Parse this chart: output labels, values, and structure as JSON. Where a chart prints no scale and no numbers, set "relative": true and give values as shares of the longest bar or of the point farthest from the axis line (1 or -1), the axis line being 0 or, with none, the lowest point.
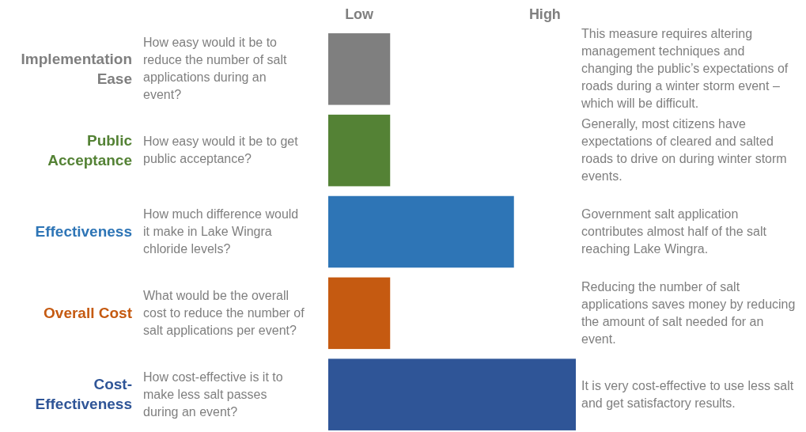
{
  "chart_data": {
    "type": "bar",
    "orientation": "horizontal",
    "relative": true,
    "categories": [
      "Implementation Ease",
      "Public Acceptance",
      "Effectiveness",
      "Overall Cost",
      "Cost-Effectiveness"
    ],
    "values": [
      0.25,
      0.25,
      0.75,
      0.25,
      1
    ],
    "colors": [
      "#7f7f7f",
      "#548235",
      "#2e75b6",
      "#c55a11",
      "#2f5597"
    ],
    "annotations": [
      "Low",
      "High",
      "How easy would it be to reduce the number of salt applications during an event?",
      "How easy would it be to get public acceptance?",
      "How much difference would it make in Lake Wingra chloride levels?",
      "What would be the overall cost to reduce the number of salt applications per event?",
      "How cost-effective is it to make less salt passes during an event?",
      "This measure requires altering management techniques and changing the public’s expectations of roads during a winter storm event – which will be difficult.",
      "Generally, most citizens have expectations of cleared and salted roads to drive on during winter storm events.",
      "Government salt application contributes almost half of the salt reaching Lake Wingra.",
      "Reducing the number of salt applications saves money by reducing the amount of salt needed for an event.",
      "It is very cost-effective to use less salt and get satisfactory results."
    ]
  }
}
